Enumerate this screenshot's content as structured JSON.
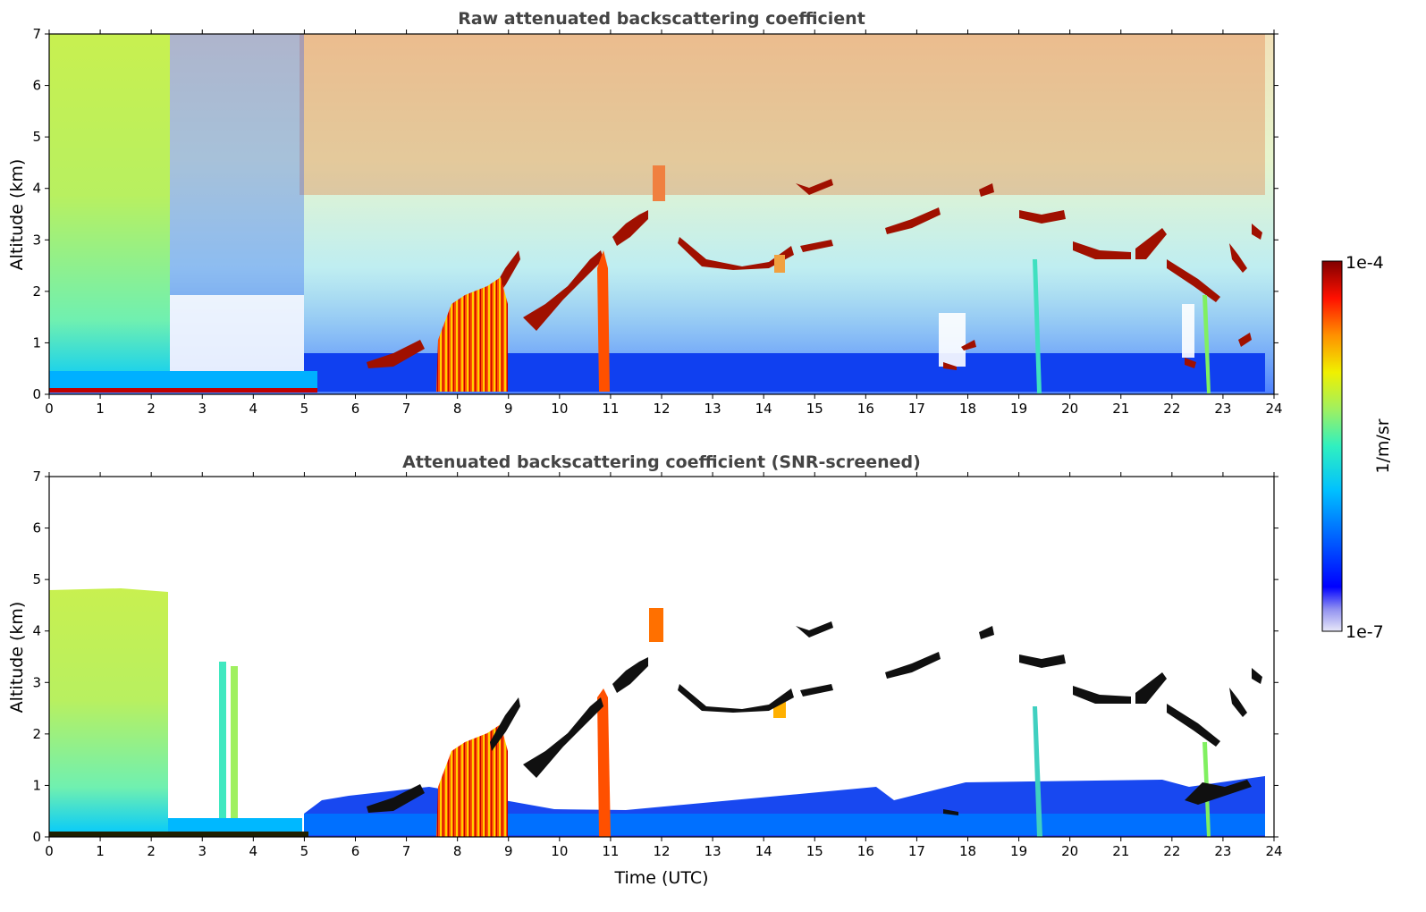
{
  "chart_data": [
    {
      "type": "heatmap",
      "title": "Raw attenuated backscattering coefficient",
      "xlabel": "",
      "ylabel": "Altitude (km)",
      "xlim": [
        0,
        24
      ],
      "ylim": [
        0,
        7
      ],
      "x_ticks": [
        "0",
        "1",
        "2",
        "3",
        "4",
        "5",
        "6",
        "7",
        "8",
        "9",
        "10",
        "11",
        "12",
        "13",
        "14",
        "15",
        "16",
        "17",
        "18",
        "19",
        "20",
        "21",
        "22",
        "23",
        "24"
      ],
      "y_ticks": [
        "0",
        "1",
        "2",
        "3",
        "4",
        "5",
        "6",
        "7"
      ],
      "color_scale": "log",
      "cloud_layers": [
        {
          "t_start": 6.5,
          "t_end": 7.3,
          "alt_start": 0.6,
          "alt_end": 1.0
        },
        {
          "t_start": 8.3,
          "t_end": 9.0,
          "alt_start": 1.5,
          "alt_end": 2.8
        },
        {
          "t_start": 9.4,
          "t_end": 10.8,
          "alt_start": 1.0,
          "alt_end": 2.8
        },
        {
          "t_start": 11.0,
          "t_end": 11.8,
          "alt_start": 2.9,
          "alt_end": 3.5
        },
        {
          "t_start": 12.4,
          "t_end": 14.6,
          "alt_start": 2.5,
          "alt_end": 2.9
        },
        {
          "t_start": 14.6,
          "t_end": 15.4,
          "alt_start": 2.9,
          "alt_end": 4.2
        },
        {
          "t_start": 16.4,
          "t_end": 17.4,
          "alt_start": 3.1,
          "alt_end": 3.6
        },
        {
          "t_start": 18.0,
          "t_end": 18.6,
          "alt_start": 3.5,
          "alt_end": 4.1
        },
        {
          "t_start": 19.0,
          "t_end": 20.2,
          "alt_start": 3.0,
          "alt_end": 3.6
        },
        {
          "t_start": 20.2,
          "t_end": 21.4,
          "alt_start": 2.6,
          "alt_end": 2.8
        },
        {
          "t_start": 21.5,
          "t_end": 22.0,
          "alt_start": 2.7,
          "alt_end": 3.2
        },
        {
          "t_start": 22.0,
          "t_end": 23.4,
          "alt_start": 1.5,
          "alt_end": 2.6
        },
        {
          "t_start": 23.4,
          "t_end": 23.8,
          "alt_start": 2.4,
          "alt_end": 3.3
        }
      ],
      "precipitation_shafts": [
        {
          "t_start": 7.6,
          "t_end": 9.0,
          "alt_top": 2.2
        },
        {
          "t_start": 10.7,
          "t_end": 10.95,
          "alt_top": 2.9
        }
      ]
    },
    {
      "type": "heatmap",
      "title": "Attenuated backscattering coefficient (SNR-screened)",
      "xlabel": "Time (UTC)",
      "ylabel": "Altitude (km)",
      "xlim": [
        0,
        24
      ],
      "ylim": [
        0,
        7
      ],
      "x_ticks": [
        "0",
        "1",
        "2",
        "3",
        "4",
        "5",
        "6",
        "7",
        "8",
        "9",
        "10",
        "11",
        "12",
        "13",
        "14",
        "15",
        "16",
        "17",
        "18",
        "19",
        "20",
        "21",
        "22",
        "23",
        "24"
      ],
      "y_ticks": [
        "0",
        "1",
        "2",
        "3",
        "4",
        "5",
        "6",
        "7"
      ],
      "color_scale": "log",
      "boundary_layer_top_km": 0.5
    }
  ],
  "colorbar": {
    "label": "1/m/sr",
    "max_label": "1e-4",
    "min_label": "1e-7",
    "colors": [
      "#e8e8f8",
      "#b0b0f0",
      "#6060f0",
      "#0000ff",
      "#0060ff",
      "#00b0ff",
      "#00e0e0",
      "#40f0a0",
      "#a0f060",
      "#f0f000",
      "#ffb000",
      "#ff6000",
      "#ff0000",
      "#c00000",
      "#800000"
    ]
  }
}
